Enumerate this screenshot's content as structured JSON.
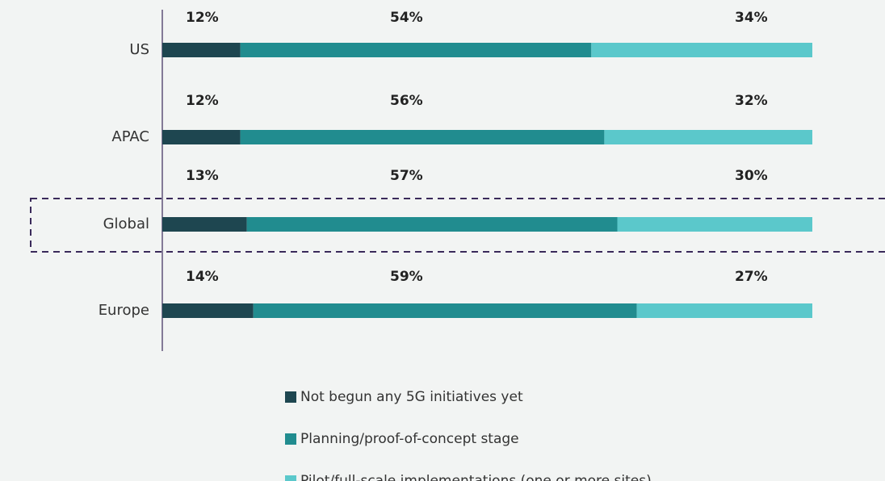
{
  "chart_data": {
    "type": "stacked-bar-horizontal",
    "categories": [
      "US",
      "APAC",
      "Global",
      "Europe"
    ],
    "xlim": [
      0,
      100
    ],
    "highlight": "Global",
    "series": [
      {
        "name": "Not begun any 5G initiatives yet",
        "color": "#1e4650",
        "values": [
          12,
          12,
          13,
          14
        ],
        "value_labels": [
          "12%",
          "12%",
          "13%",
          "14%"
        ]
      },
      {
        "name": "Planning/proof-of-concept stage",
        "color": "#218c8f",
        "values": [
          54,
          56,
          57,
          59
        ],
        "value_labels": [
          "54%",
          "56%",
          "57%",
          "59%"
        ]
      },
      {
        "name": "Pilot/full-scale implementations (one or more sites)",
        "color": "#5bc8cb",
        "values": [
          34,
          32,
          30,
          27
        ],
        "value_labels": [
          "34%",
          "32%",
          "30%",
          "27%"
        ]
      }
    ]
  }
}
